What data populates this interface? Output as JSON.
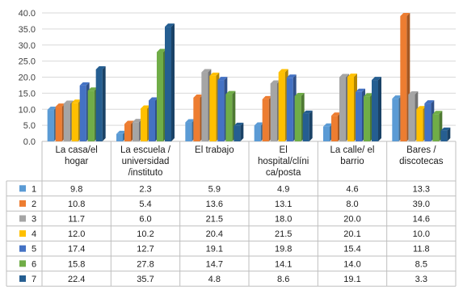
{
  "chart_data": {
    "type": "bar",
    "categories": [
      [
        "La casa/el",
        "hogar"
      ],
      [
        "La escuela /",
        "universidad",
        "/instituto"
      ],
      [
        "El trabajo"
      ],
      [
        "El",
        "hospital/clíni",
        "ca/posta"
      ],
      [
        "La calle/ el",
        "barrio"
      ],
      [
        "Bares /",
        "discotecas"
      ]
    ],
    "series": [
      {
        "name": "1",
        "color": "#5b9bd5",
        "values": [
          9.8,
          2.3,
          5.9,
          4.9,
          4.6,
          13.3
        ]
      },
      {
        "name": "2",
        "color": "#ed7d31",
        "values": [
          10.8,
          5.4,
          13.6,
          13.1,
          8.0,
          39.0
        ]
      },
      {
        "name": "3",
        "color": "#a5a5a5",
        "values": [
          11.7,
          6.0,
          21.5,
          18.0,
          20.0,
          14.6
        ]
      },
      {
        "name": "4",
        "color": "#ffc000",
        "values": [
          12.0,
          10.2,
          20.4,
          21.5,
          20.1,
          10.0
        ]
      },
      {
        "name": "5",
        "color": "#4472c4",
        "values": [
          17.4,
          12.7,
          19.1,
          19.8,
          15.4,
          11.8
        ]
      },
      {
        "name": "6",
        "color": "#70ad47",
        "values": [
          15.8,
          27.8,
          14.7,
          14.1,
          14.0,
          8.5
        ]
      },
      {
        "name": "7",
        "color": "#255e91",
        "values": [
          22.4,
          35.7,
          4.8,
          8.6,
          19.1,
          3.3
        ]
      }
    ],
    "yticks": [
      "0.0",
      "5.0",
      "10.0",
      "15.0",
      "20.0",
      "25.0",
      "30.0",
      "35.0",
      "40.0"
    ],
    "ylim": [
      0,
      40
    ],
    "grid": true,
    "legend": "data-table"
  }
}
